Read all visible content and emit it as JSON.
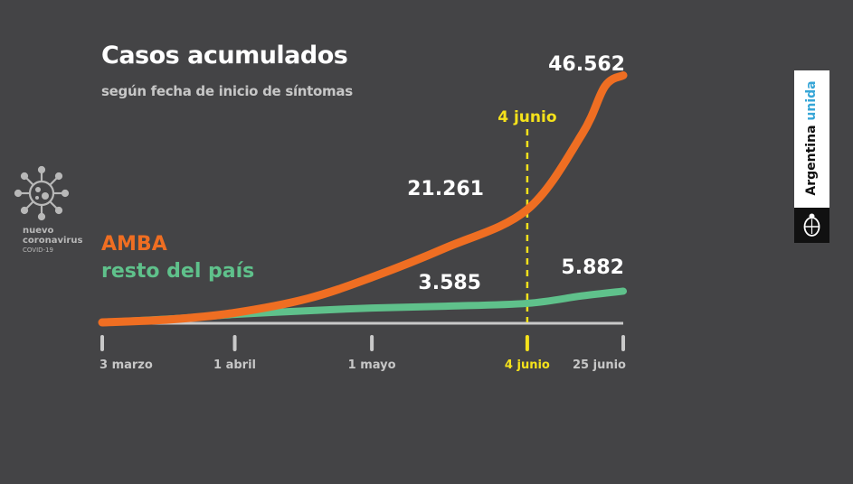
{
  "header": {
    "title": "Casos acumulados",
    "subtitle": "según fecha de inicio de síntomas"
  },
  "logo": {
    "line1": "nuevo",
    "line2": "coronavirus",
    "line3": "COVID-19",
    "icon": "virus-icon"
  },
  "legend": {
    "amba": "AMBA",
    "resto": "resto del país"
  },
  "badge": {
    "text_main": "Argentina ",
    "text_accent": "unida",
    "seal_icon": "coat-of-arms-icon"
  },
  "colors": {
    "background": "#444446",
    "amba": "#ef6e22",
    "resto": "#5fc18b",
    "marker": "#f5e21b",
    "axis": "#c9c9c9"
  },
  "chart_data": {
    "type": "line",
    "title": "Casos acumulados",
    "subtitle": "según fecha de inicio de síntomas",
    "x_ticks": [
      "3 marzo",
      "1 abril",
      "1 mayo",
      "4 junio",
      "25 junio"
    ],
    "x_tick_days": [
      0,
      29,
      59,
      93,
      114
    ],
    "highlight": {
      "label": "4 junio",
      "x": 93
    },
    "ylim": [
      0,
      48000
    ],
    "series": [
      {
        "name": "AMBA",
        "x": [
          0,
          15,
          29,
          45,
          59,
          75,
          93,
          105,
          110,
          114
        ],
        "values": [
          0,
          550,
          1800,
          4500,
          8500,
          14000,
          21261,
          35500,
          44500,
          46562
        ],
        "labels": [
          {
            "x": 93,
            "text": "21.261"
          },
          {
            "x": 114,
            "text": "46.562"
          }
        ]
      },
      {
        "name": "resto del país",
        "x": [
          0,
          15,
          29,
          45,
          59,
          75,
          93,
          105,
          114
        ],
        "values": [
          0,
          650,
          1500,
          2200,
          2700,
          3050,
          3585,
          5000,
          5882
        ],
        "labels": [
          {
            "x": 93,
            "text": "3.585"
          },
          {
            "x": 114,
            "text": "5.882"
          }
        ]
      }
    ]
  }
}
